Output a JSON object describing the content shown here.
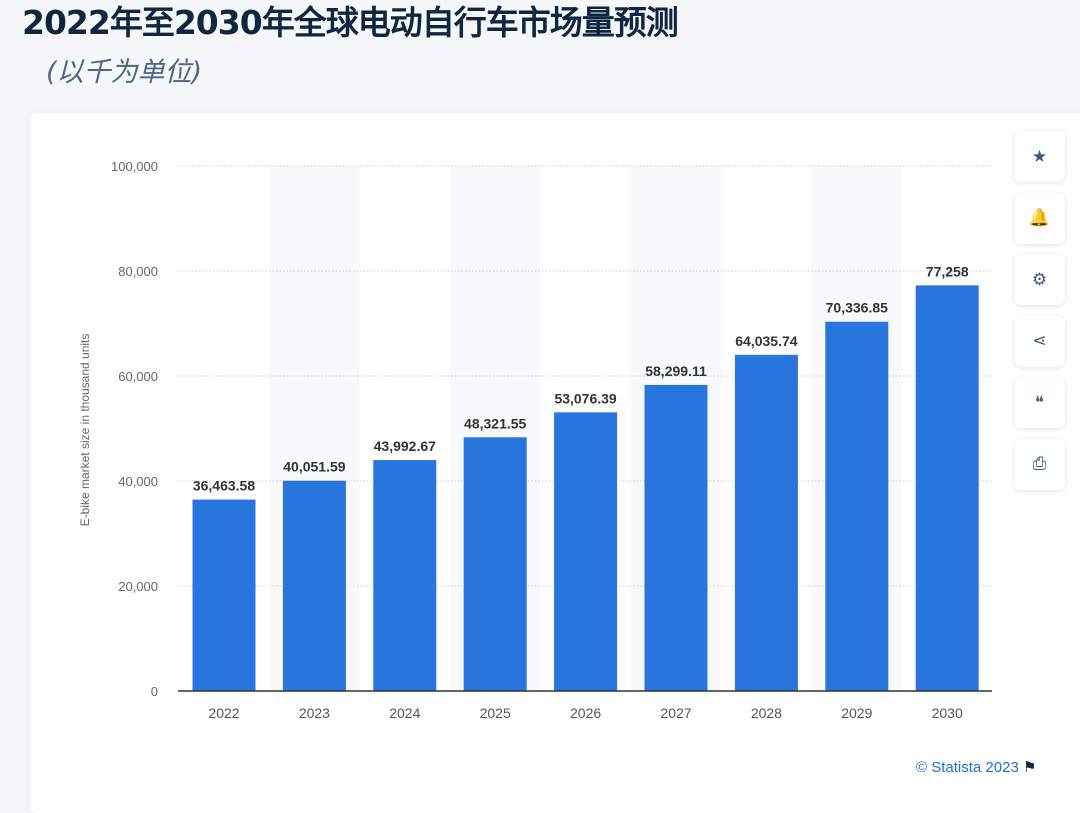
{
  "title": "2022年至2030年全球电动自行车市场量预测",
  "subtitle": "(以千为单位)",
  "toolbar": [
    {
      "icon": "star-icon",
      "glyph": "★"
    },
    {
      "icon": "bell-icon",
      "glyph": "🔔"
    },
    {
      "icon": "gear-icon",
      "glyph": "⚙"
    },
    {
      "icon": "share-icon",
      "glyph": "⋖"
    },
    {
      "icon": "quote-icon",
      "glyph": "❝"
    },
    {
      "icon": "print-icon",
      "glyph": "⎙"
    }
  ],
  "credit": "© Statista 2023",
  "chart_data": {
    "type": "bar",
    "categories": [
      "2022",
      "2023",
      "2024",
      "2025",
      "2026",
      "2027",
      "2028",
      "2029",
      "2030"
    ],
    "values": [
      36463.58,
      40051.59,
      43992.67,
      48321.55,
      53076.39,
      58299.11,
      64035.74,
      70336.85,
      77258
    ],
    "labels": [
      "36,463.58",
      "40,051.59",
      "43,992.67",
      "48,321.55",
      "53,076.39",
      "58,299.11",
      "64,035.74",
      "70,336.85",
      "77,258"
    ],
    "ylabel": "E-bike market size in thousand units",
    "ylim": [
      0,
      100000
    ],
    "yticks": [
      0,
      20000,
      40000,
      60000,
      80000,
      100000
    ],
    "ytick_labels": [
      "0",
      "20,000",
      "40,000",
      "60,000",
      "80,000",
      "100,000"
    ],
    "grid": true,
    "bar_color": "#2876dd"
  }
}
